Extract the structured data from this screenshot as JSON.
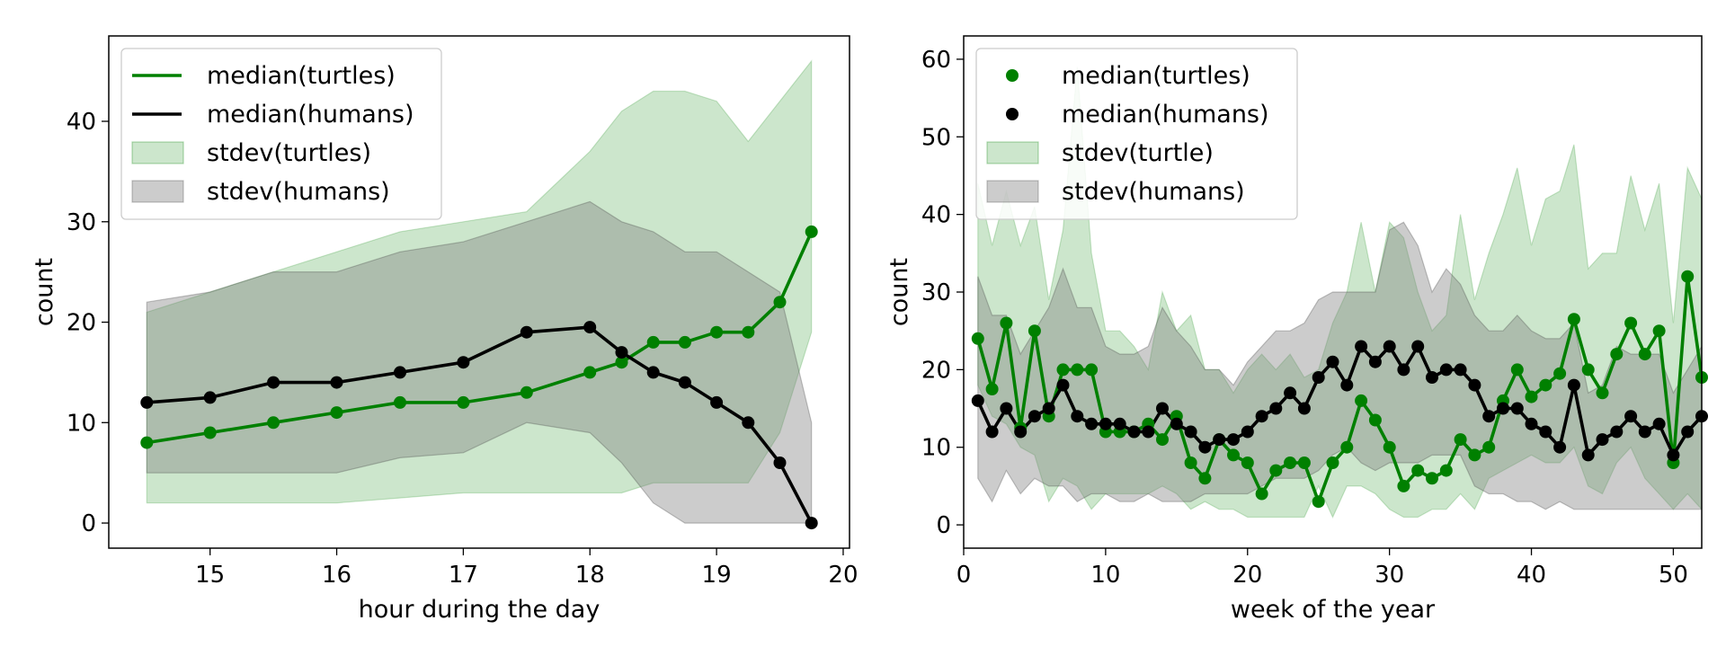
{
  "chart_data": [
    {
      "type": "line",
      "xlabel": "hour during the day",
      "ylabel": "count",
      "xlim": [
        14.2,
        20.05
      ],
      "ylim": [
        -2.5,
        48.5
      ],
      "xticks": [
        15,
        16,
        17,
        18,
        19,
        20
      ],
      "yticks": [
        0,
        10,
        20,
        30,
        40
      ],
      "grid": false,
      "legend_position": "top-left",
      "x": [
        14.5,
        15.0,
        15.5,
        16.0,
        16.5,
        17.0,
        17.5,
        18.0,
        18.25,
        18.5,
        18.75,
        19.0,
        19.25,
        19.5,
        19.75
      ],
      "series": [
        {
          "name": "median(turtles)",
          "kind": "line",
          "color": "#008000",
          "values": [
            8,
            9,
            10,
            11,
            12,
            12,
            13,
            15,
            16,
            18,
            18,
            19,
            19,
            22,
            29
          ]
        },
        {
          "name": "median(humans)",
          "kind": "line",
          "color": "#000000",
          "values": [
            12,
            12.5,
            14,
            14,
            15,
            16,
            19,
            19.5,
            17,
            15,
            14,
            12,
            10,
            6,
            0
          ]
        },
        {
          "name": "stdev(turtles)",
          "kind": "band",
          "color": "#008000",
          "lower": [
            2,
            2,
            2,
            2,
            2.5,
            3,
            3,
            3,
            3,
            4,
            4,
            4,
            4,
            9,
            19
          ],
          "upper": [
            21,
            23,
            25,
            27,
            29,
            30,
            31,
            37,
            41,
            43,
            43,
            42,
            38,
            42,
            46
          ]
        },
        {
          "name": "stdev(humans)",
          "kind": "band",
          "color": "#808080",
          "lower": [
            5,
            5,
            5,
            5,
            6.5,
            7,
            10,
            9,
            6,
            2,
            0,
            0,
            0,
            0,
            0
          ],
          "upper": [
            22,
            23,
            25,
            25,
            27,
            28,
            30,
            32,
            30,
            29,
            27,
            27,
            25,
            23,
            10
          ]
        }
      ]
    },
    {
      "type": "scatter",
      "xlabel": "week of the year",
      "ylabel": "count",
      "xlim": [
        0,
        52
      ],
      "ylim": [
        -3,
        63
      ],
      "xticks": [
        0,
        10,
        20,
        30,
        40,
        50
      ],
      "yticks": [
        0,
        10,
        20,
        30,
        40,
        50,
        60
      ],
      "grid": false,
      "legend_position": "top-left",
      "x": [
        1,
        2,
        3,
        4,
        5,
        6,
        7,
        8,
        9,
        10,
        11,
        12,
        13,
        14,
        15,
        16,
        17,
        18,
        19,
        20,
        21,
        22,
        23,
        24,
        25,
        26,
        27,
        28,
        29,
        30,
        31,
        32,
        33,
        34,
        35,
        36,
        37,
        38,
        39,
        40,
        41,
        42,
        43,
        44,
        45,
        46,
        47,
        48,
        49,
        50,
        51,
        52
      ],
      "series": [
        {
          "name": "median(turtles)",
          "kind": "line+markers",
          "color": "#008000",
          "values": [
            24,
            17.5,
            26,
            12.5,
            25,
            14,
            20,
            20,
            20,
            12,
            12,
            12,
            13,
            11,
            14,
            8,
            6,
            11,
            9,
            8,
            4,
            7,
            8,
            8,
            3,
            8,
            10,
            16,
            13.5,
            10,
            5,
            7,
            6,
            7,
            11,
            9,
            10,
            16,
            20,
            16.5,
            18,
            19.5,
            26.5,
            20,
            17,
            22,
            26,
            22,
            25,
            8,
            32,
            19
          ]
        },
        {
          "name": "median(humans)",
          "kind": "line+markers",
          "color": "#000000",
          "values": [
            16,
            12,
            15,
            12,
            14,
            15,
            18,
            14,
            13,
            13,
            13,
            12,
            12,
            15,
            13,
            12,
            10,
            11,
            11,
            12,
            14,
            15,
            17,
            15,
            19,
            21,
            18,
            23,
            21,
            23,
            20,
            23,
            19,
            20,
            20,
            18,
            14,
            15,
            15,
            13,
            12,
            10,
            18,
            9,
            11,
            12,
            14,
            12,
            13,
            9,
            12,
            14
          ]
        },
        {
          "name": "stdev(turtle)",
          "kind": "band",
          "color": "#008000",
          "lower": [
            18,
            14,
            13,
            10,
            9,
            3,
            6,
            5,
            2,
            4,
            4,
            4,
            4,
            5,
            4,
            2,
            3,
            2,
            2,
            1,
            1,
            1,
            1,
            1,
            5,
            1,
            5,
            5,
            4,
            2,
            1,
            1,
            2,
            2,
            4,
            2,
            6,
            7,
            8,
            9,
            8,
            8,
            10,
            5,
            4,
            8,
            10,
            6,
            4,
            2,
            4,
            2
          ],
          "upper": [
            44,
            36,
            43,
            36,
            41,
            29,
            38,
            59,
            35,
            25,
            25,
            23,
            20,
            30,
            25,
            27,
            20,
            20,
            17,
            20,
            22,
            20,
            22,
            19,
            20,
            26,
            30,
            39,
            30,
            39,
            37,
            30,
            25,
            27,
            40,
            29,
            35,
            40,
            46,
            36,
            42,
            43,
            49,
            33,
            35,
            35,
            45,
            38,
            44,
            26,
            46,
            42
          ]
        },
        {
          "name": "stdev(humans)",
          "kind": "band",
          "color": "#808080",
          "lower": [
            6,
            3,
            7,
            4,
            6,
            5,
            5,
            3,
            4,
            4,
            3,
            3,
            4,
            3,
            3,
            3,
            4,
            4,
            4,
            4,
            5,
            6,
            6,
            6,
            7,
            9,
            10,
            8,
            7,
            8,
            8,
            8,
            9,
            9,
            9,
            5,
            4,
            4,
            3,
            3,
            2,
            3,
            2,
            2,
            2,
            2,
            2,
            2,
            2,
            2,
            2,
            2
          ]
        },
        {
          "name": "stdev(humans)",
          "kind": "band-upper",
          "color": "#808080",
          "values": [
            32,
            27,
            27,
            22,
            25,
            28,
            33,
            28,
            28,
            23,
            22,
            22,
            23,
            28,
            25,
            23,
            20,
            20,
            18,
            21,
            23,
            25,
            25,
            26,
            29,
            30,
            30,
            30,
            30,
            38,
            39,
            36,
            30,
            33,
            31,
            27,
            25,
            25,
            27,
            25,
            24,
            24,
            26,
            17,
            18,
            23,
            22,
            22,
            22,
            17,
            20,
            23
          ]
        }
      ]
    }
  ]
}
